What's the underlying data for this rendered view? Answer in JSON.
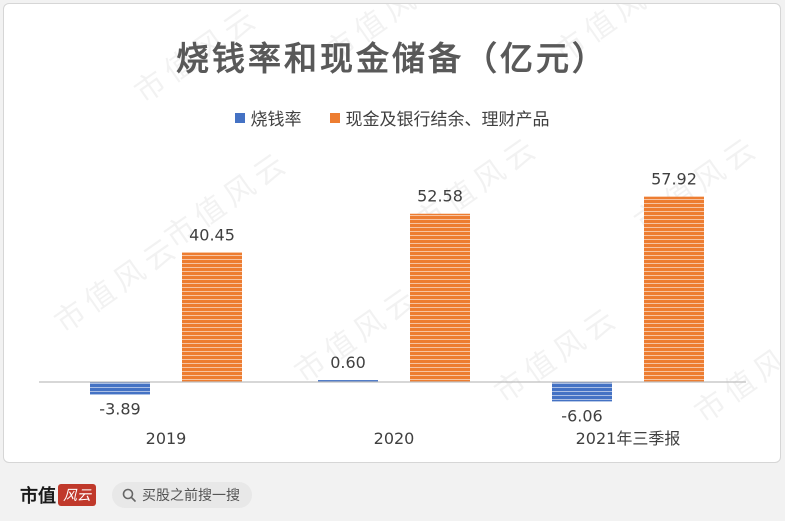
{
  "chart_data": {
    "type": "bar",
    "title": "烧钱率和现金储备（亿元）",
    "categories": [
      "2019",
      "2020",
      "2021年三季报"
    ],
    "series": [
      {
        "name": "烧钱率",
        "values": [
          -3.89,
          0.6,
          -6.06
        ],
        "color": "#4472c4",
        "labels": [
          "-3.89",
          "0.60",
          "-6.06"
        ]
      },
      {
        "name": "现金及银行结余、理财产品",
        "values": [
          40.45,
          52.58,
          57.92
        ],
        "color": "#ed7d31",
        "labels": [
          "40.45",
          "52.58",
          "57.92"
        ]
      }
    ],
    "ylim": [
      -8,
      60
    ],
    "grid": false,
    "legend_position": "top"
  },
  "watermark": "市值风云",
  "footer": {
    "brand": "市值",
    "brand_script": "风云",
    "search_text": "买股之前搜一搜",
    "search_icon": "search-icon"
  }
}
